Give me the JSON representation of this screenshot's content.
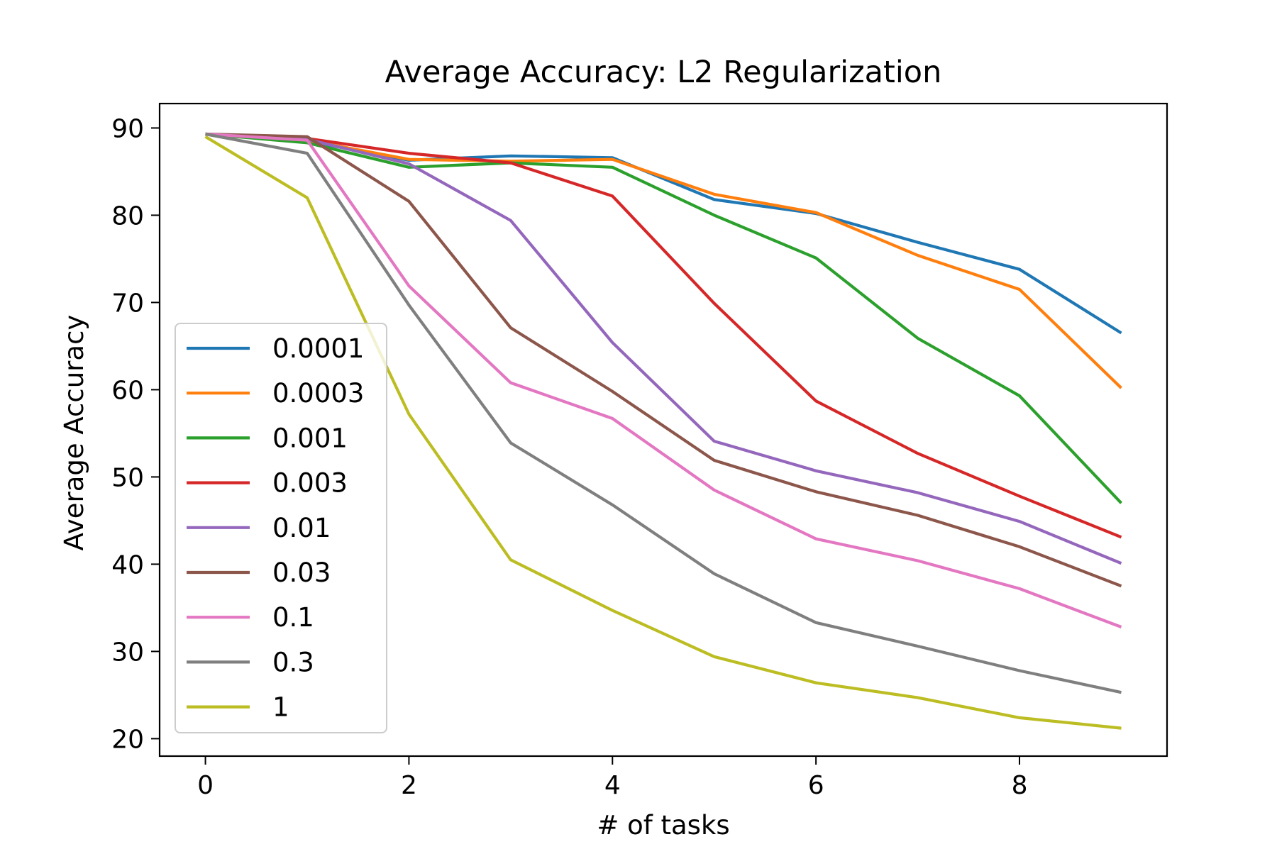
{
  "chart_data": {
    "type": "line",
    "title": "Average Accuracy: L2 Regularization",
    "xlabel": "# of tasks",
    "ylabel": "Average Accuracy",
    "x": [
      0,
      1,
      2,
      3,
      4,
      5,
      6,
      7,
      8,
      9
    ],
    "xlim": [
      -0.45,
      9.45
    ],
    "ylim": [
      18,
      92.8
    ],
    "xticks": [
      0,
      2,
      4,
      6,
      8
    ],
    "yticks": [
      20,
      30,
      40,
      50,
      60,
      70,
      80,
      90
    ],
    "grid": false,
    "legend_position": "lower-left",
    "series": [
      {
        "name": "0.0001",
        "color": "#1f77b4",
        "values": [
          89.3,
          88.5,
          86.3,
          86.8,
          86.6,
          81.8,
          80.2,
          76.9,
          73.8,
          66.5
        ]
      },
      {
        "name": "0.0003",
        "color": "#ff7f0e",
        "values": [
          89.3,
          88.6,
          86.4,
          86.2,
          86.4,
          82.4,
          80.3,
          75.4,
          71.5,
          60.2
        ]
      },
      {
        "name": "0.001",
        "color": "#2ca02c",
        "values": [
          89.3,
          88.3,
          85.5,
          86.0,
          85.5,
          80.0,
          75.1,
          65.9,
          59.3,
          47.0
        ]
      },
      {
        "name": "0.003",
        "color": "#d62728",
        "values": [
          89.3,
          88.8,
          87.1,
          86.0,
          82.2,
          69.9,
          58.7,
          52.7,
          47.8,
          43.1
        ]
      },
      {
        "name": "0.01",
        "color": "#9467bd",
        "values": [
          89.3,
          88.7,
          85.9,
          79.4,
          65.4,
          54.1,
          50.7,
          48.2,
          44.9,
          40.1
        ]
      },
      {
        "name": "0.03",
        "color": "#8c564b",
        "values": [
          89.3,
          89.0,
          81.6,
          67.1,
          59.8,
          51.9,
          48.3,
          45.6,
          42.0,
          37.5
        ]
      },
      {
        "name": "0.1",
        "color": "#e377c2",
        "values": [
          89.3,
          88.6,
          71.9,
          60.8,
          56.7,
          48.5,
          42.9,
          40.4,
          37.2,
          32.8
        ]
      },
      {
        "name": "0.3",
        "color": "#7f7f7f",
        "values": [
          89.3,
          87.1,
          69.7,
          53.9,
          46.8,
          38.9,
          33.3,
          30.6,
          27.8,
          25.3
        ]
      },
      {
        "name": "1",
        "color": "#bcbd22",
        "values": [
          89.0,
          82.0,
          57.2,
          40.5,
          34.7,
          29.4,
          26.4,
          24.7,
          22.4,
          21.2
        ]
      }
    ]
  }
}
